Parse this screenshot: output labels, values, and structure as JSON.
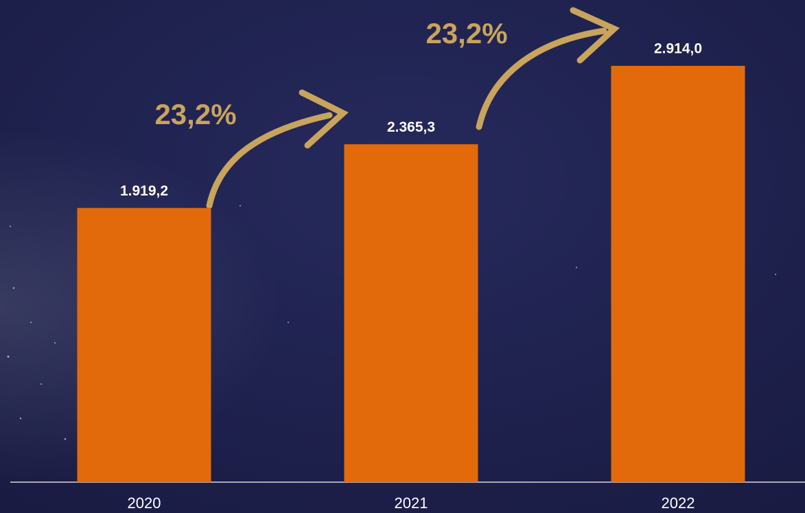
{
  "chart_data": {
    "type": "bar",
    "categories": [
      "2020",
      "2021",
      "2022"
    ],
    "values": [
      1919.2,
      2365.3,
      2914.0
    ],
    "value_labels": [
      "1.919,2",
      "2.365,3",
      "2.914,0"
    ],
    "color": "#e36a0b",
    "annotations": [
      "23,2%",
      "23,2%"
    ]
  }
}
